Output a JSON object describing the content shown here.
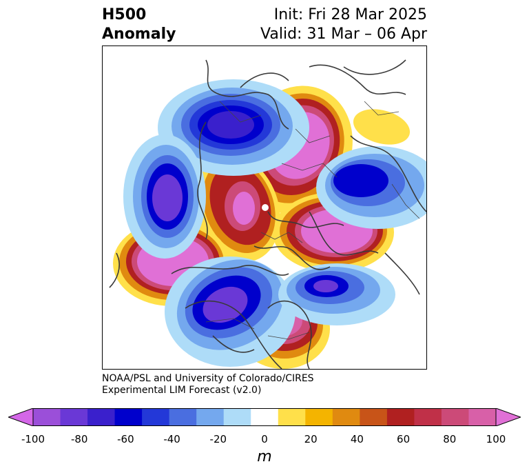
{
  "title": {
    "left_line1": "H500",
    "left_line2": "Anomaly",
    "right_line1": "Init: Fri 28 Mar 2025",
    "right_line2": "Valid: 31 Mar – 06 Apr"
  },
  "credit": {
    "line1": "NOAA/PSL and University of Colorado/CIRES",
    "line2": "Experimental LIM Forecast (v2.0)"
  },
  "colorbar": {
    "unit": "m",
    "ticks": [
      "-100",
      "-80",
      "-60",
      "-40",
      "-20",
      "0",
      "20",
      "40",
      "60",
      "80",
      "100"
    ],
    "colors": [
      "#d467e8",
      "#9b4fd9",
      "#6a38d6",
      "#3a20cc",
      "#0000cc",
      "#2338d8",
      "#4a6ee0",
      "#74a8ee",
      "#aedcf8",
      "#ffffff",
      "#ffe04a",
      "#f4b400",
      "#e08a10",
      "#c85418",
      "#b02020",
      "#c03048",
      "#cc4a78",
      "#d860a8",
      "#e070d6"
    ]
  },
  "map": {
    "projection": "north-polar-stereographic",
    "anomalies": [
      {
        "name": "positive-anomaly-hudson-bay",
        "sign": "positive",
        "value": 100
      },
      {
        "name": "positive-anomaly-north-atlantic",
        "sign": "positive",
        "value": 100
      },
      {
        "name": "positive-anomaly-north-pacific",
        "sign": "positive",
        "value": 100
      },
      {
        "name": "positive-anomaly-arctic-siberia",
        "sign": "positive",
        "value": 80
      },
      {
        "name": "positive-anomaly-central-asia",
        "sign": "positive",
        "value": 80
      },
      {
        "name": "positive-anomaly-greenland-sea",
        "sign": "positive",
        "value": 20
      },
      {
        "name": "negative-anomaly-eastern-asia",
        "sign": "negative",
        "value": -100
      },
      {
        "name": "negative-anomaly-western-europe",
        "sign": "negative",
        "value": -80
      },
      {
        "name": "negative-anomaly-east-pacific",
        "sign": "negative",
        "value": -60
      },
      {
        "name": "negative-anomaly-western-us",
        "sign": "negative",
        "value": -80
      },
      {
        "name": "negative-anomaly-mid-atlantic",
        "sign": "negative",
        "value": -60
      }
    ]
  }
}
